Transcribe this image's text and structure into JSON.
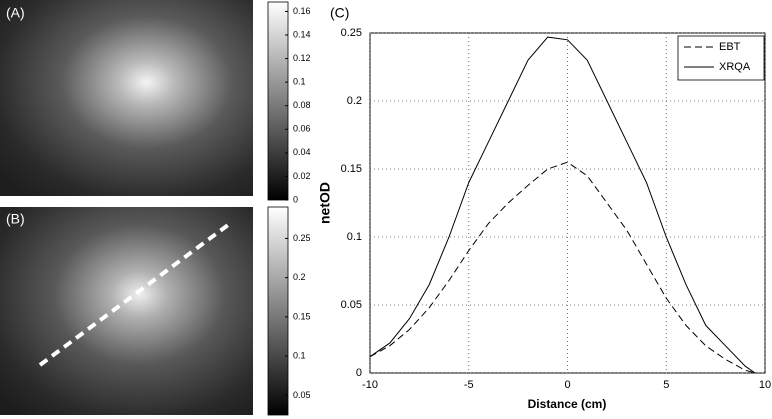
{
  "chart_data": [
    {
      "type": "colorbar",
      "label": "(A)",
      "ylim": [
        0,
        0.168
      ],
      "yticks": [
        0,
        0.02,
        0.04,
        0.06,
        0.08,
        0.1,
        0.12,
        0.14,
        0.16
      ]
    },
    {
      "type": "colorbar",
      "label": "(B)",
      "ylim": [
        0.025,
        0.29
      ],
      "yticks": [
        0.05,
        0.1,
        0.15,
        0.2,
        0.25
      ]
    },
    {
      "type": "line",
      "label": "(C)",
      "xlabel": "Distance (cm)",
      "ylabel": "netOD",
      "x": [
        -10,
        -9,
        -8,
        -7,
        -6,
        -5,
        -4,
        -3,
        -2,
        -1,
        0,
        1,
        2,
        3,
        4,
        5,
        6,
        7,
        8,
        9,
        9.5
      ],
      "series": [
        {
          "name": "EBT",
          "color": "#000000",
          "dash": true,
          "values": [
            0.012,
            0.02,
            0.032,
            0.048,
            0.068,
            0.09,
            0.11,
            0.125,
            0.138,
            0.15,
            0.155,
            0.145,
            0.125,
            0.105,
            0.08,
            0.055,
            0.035,
            0.02,
            0.01,
            0.002,
            0
          ]
        },
        {
          "name": "XRQA",
          "color": "#000000",
          "dash": false,
          "values": [
            0.012,
            0.022,
            0.04,
            0.065,
            0.1,
            0.14,
            0.17,
            0.2,
            0.23,
            0.247,
            0.245,
            0.23,
            0.2,
            0.17,
            0.14,
            0.1,
            0.065,
            0.035,
            0.02,
            0.005,
            0
          ]
        }
      ],
      "xlim": [
        -10,
        10
      ],
      "xticks": [
        -10,
        -5,
        0,
        5,
        10
      ],
      "ylim": [
        0,
        0.25
      ],
      "yticks": [
        0,
        0.05,
        0.1,
        0.15,
        0.2,
        0.25
      ],
      "grid": true,
      "legend": "upper right"
    }
  ]
}
